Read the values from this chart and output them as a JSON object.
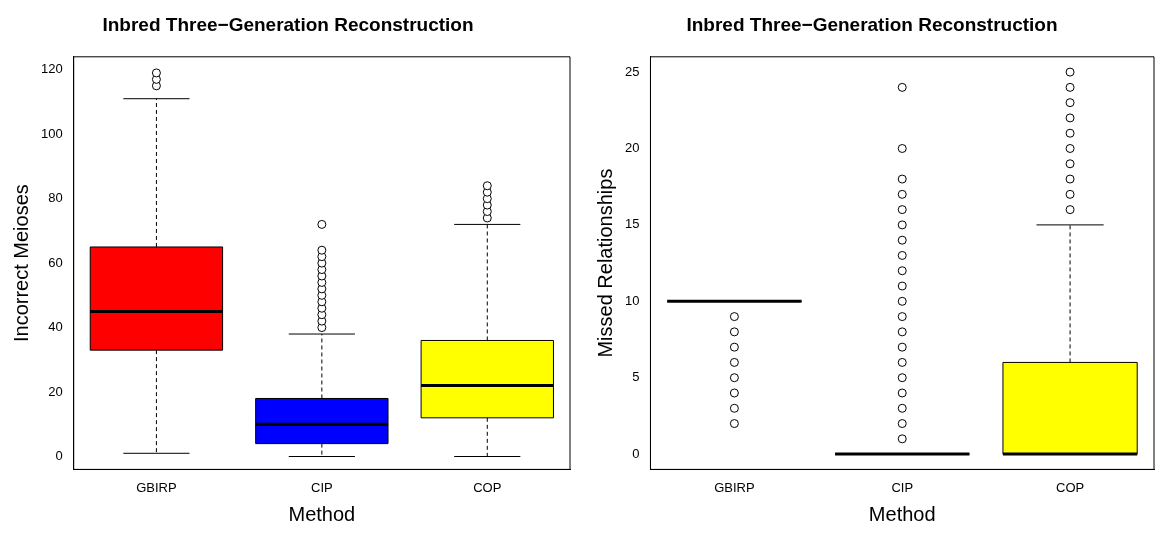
{
  "chart_data": [
    {
      "type": "box",
      "title": "Inbred Three−Generation Reconstruction",
      "xlabel": "Method",
      "ylabel": "Incorrect Meioses",
      "categories": [
        "GBIRP",
        "CIP",
        "COP"
      ],
      "colors": [
        "#ff0000",
        "#0000ff",
        "#ffff00"
      ],
      "ylim": [
        -4,
        124
      ],
      "yticks": [
        0,
        20,
        40,
        60,
        80,
        100,
        120
      ],
      "grid": false,
      "boxes": [
        {
          "low": 1,
          "q1": 33,
          "median": 45,
          "q3": 65,
          "high": 111,
          "outliers": [
            115,
            117,
            119
          ]
        },
        {
          "low": 0,
          "q1": 4,
          "median": 10,
          "q3": 18,
          "high": 38,
          "outliers": [
            40,
            42,
            44,
            46,
            48,
            50,
            52,
            54,
            56,
            58,
            60,
            62,
            64,
            72
          ]
        },
        {
          "low": 0,
          "q1": 12,
          "median": 22,
          "q3": 36,
          "high": 72,
          "outliers": [
            74,
            76,
            78,
            80,
            82,
            84
          ]
        }
      ]
    },
    {
      "type": "box",
      "title": "Inbred Three−Generation Reconstruction",
      "xlabel": "Method",
      "ylabel": "Missed Relationships",
      "categories": [
        "GBIRP",
        "CIP",
        "COP"
      ],
      "colors": [
        "#000000",
        "#000000",
        "#ffff00"
      ],
      "ylim": [
        -1,
        26
      ],
      "yticks": [
        0,
        5,
        10,
        15,
        20,
        25
      ],
      "grid": false,
      "boxes": [
        {
          "low": 10,
          "q1": 10,
          "median": 10,
          "q3": 10,
          "high": 10,
          "outliers": [
            2,
            3,
            4,
            5,
            6,
            7,
            8,
            9
          ]
        },
        {
          "low": 0,
          "q1": 0,
          "median": 0,
          "q3": 0,
          "high": 0,
          "outliers": [
            1,
            2,
            3,
            4,
            5,
            6,
            7,
            8,
            9,
            10,
            11,
            12,
            13,
            14,
            15,
            16,
            17,
            18,
            20,
            24
          ]
        },
        {
          "low": 0,
          "q1": 0,
          "median": 0,
          "q3": 6,
          "high": 15,
          "outliers": [
            16,
            17,
            18,
            19,
            20,
            21,
            22,
            23,
            24,
            25
          ]
        }
      ]
    }
  ]
}
